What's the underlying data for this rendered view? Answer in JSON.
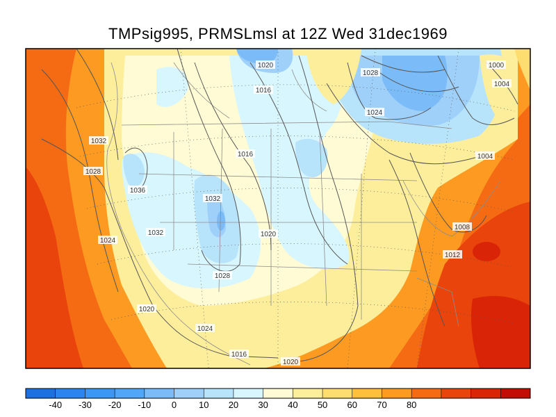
{
  "title": "TMPsig995, PRMSLmsl at 12Z Wed 31dec1969",
  "isobar_labels": [
    "1020",
    "1016",
    "1028",
    "1024",
    "1000",
    "1004",
    "1032",
    "1028",
    "1036",
    "1016",
    "1032",
    "1032",
    "1020",
    "1024",
    "1028",
    "1020",
    "1024",
    "1016",
    "1020",
    "1004",
    "1008",
    "1012"
  ],
  "colorbar": {
    "colors": [
      "#1e6fe0",
      "#2c84ef",
      "#3c96f3",
      "#52a6f7",
      "#7bbcf8",
      "#9fd0fa",
      "#b8e4fb",
      "#d8f6fd",
      "#fffbd4",
      "#fdee9c",
      "#fddd6f",
      "#fdbf3c",
      "#fd9a22",
      "#f56b14",
      "#e9440c",
      "#d92408",
      "#c20c05"
    ],
    "labels": [
      "-40",
      "-30",
      "-20",
      "-10",
      "0",
      "10",
      "20",
      "30",
      "40",
      "50",
      "60",
      "70",
      "80"
    ]
  }
}
